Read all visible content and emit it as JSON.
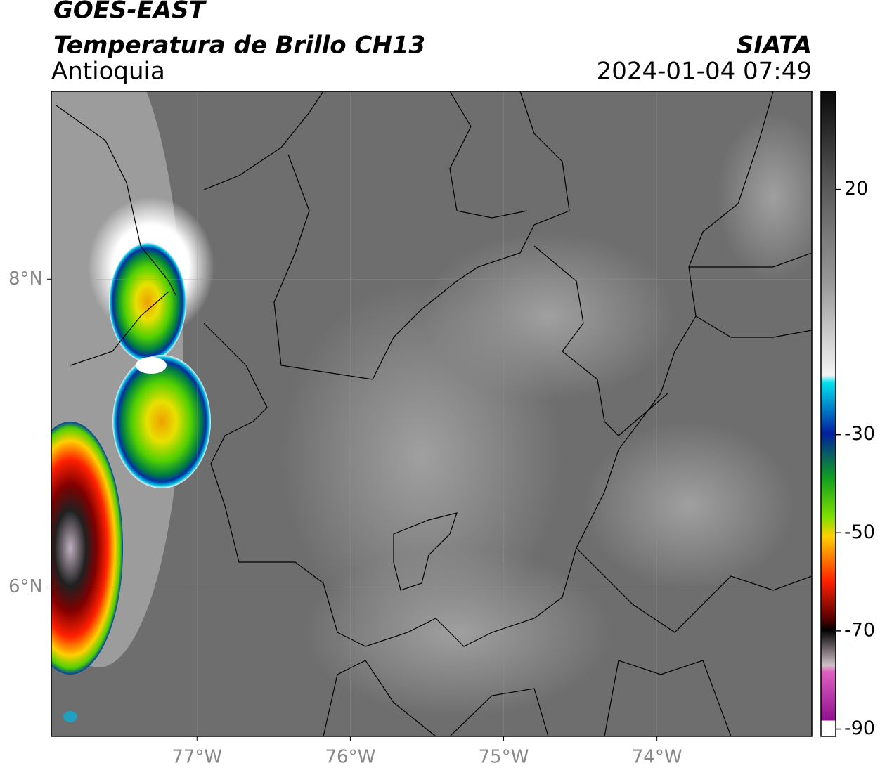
{
  "chart_data": {
    "type": "map",
    "title": "GOES-EAST",
    "subtitle": "Temperatura de Brillo CH13",
    "region": "Antioquia",
    "source": "SIATA",
    "datetime": "2024-01-04 07:49",
    "xlim": [
      -77.95,
      -72.99
    ],
    "ylim": [
      5.03,
      9.22
    ],
    "xticks": [
      {
        "value": -77,
        "label": "77°W"
      },
      {
        "value": -76,
        "label": "76°W"
      },
      {
        "value": -75,
        "label": "75°W"
      },
      {
        "value": -74,
        "label": "74°W"
      }
    ],
    "yticks": [
      {
        "value": 8,
        "label": "8°N"
      },
      {
        "value": 6,
        "label": "6°N"
      }
    ],
    "grid": true,
    "colorbar": {
      "lim": [
        -91.5,
        40
      ],
      "ticks": [
        20,
        -30,
        -50,
        -70,
        -90
      ]
    }
  }
}
